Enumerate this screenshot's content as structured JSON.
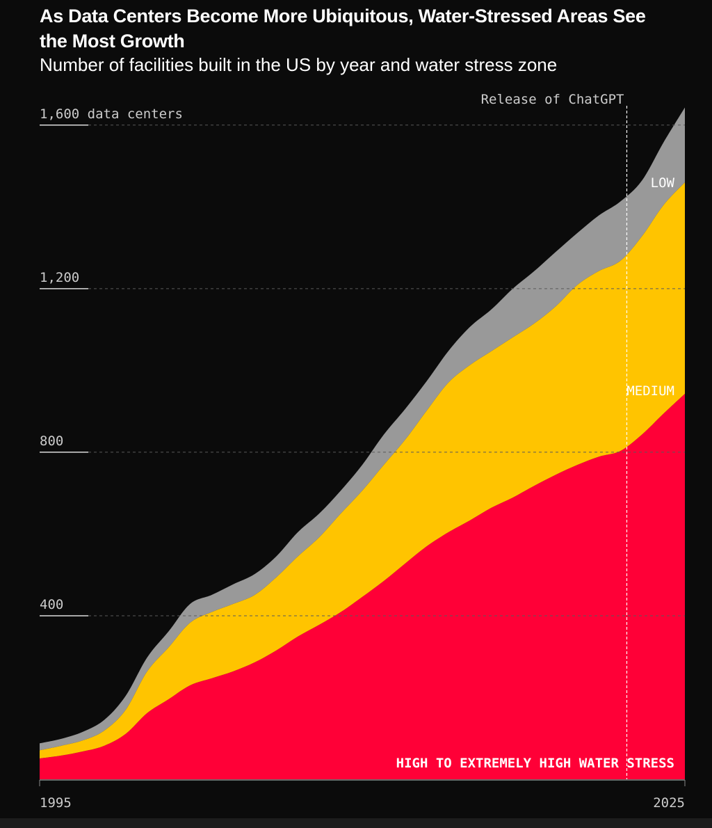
{
  "chart_data": {
    "type": "stacked_area",
    "title": "As Data Centers Become More Ubiquitous, Water-Stressed Areas See the Most Growth",
    "subtitle": "Number of facilities built in the US by year and water stress zone",
    "x": [
      1995,
      1996,
      1997,
      1998,
      1999,
      2000,
      2001,
      2002,
      2003,
      2004,
      2005,
      2006,
      2007,
      2008,
      2009,
      2010,
      2011,
      2012,
      2013,
      2014,
      2015,
      2016,
      2017,
      2018,
      2019,
      2020,
      2021,
      2022,
      2023,
      2024,
      2025
    ],
    "series": [
      {
        "name": "HIGH TO EXTREMELY HIGH WATER STRESS",
        "color": "#ff0037",
        "values": [
          51,
          58,
          68,
          82,
          111,
          162,
          196,
          230,
          247,
          264,
          286,
          315,
          349,
          378,
          409,
          446,
          485,
          528,
          570,
          604,
          633,
          664,
          689,
          718,
          745,
          769,
          789,
          803,
          843,
          894,
          943
        ]
      },
      {
        "name": "MEDIUM",
        "color": "#ffc400",
        "values": [
          20,
          24,
          27,
          37,
          59,
          102,
          127,
          153,
          162,
          165,
          165,
          179,
          196,
          214,
          241,
          260,
          284,
          303,
          332,
          366,
          380,
          383,
          392,
          397,
          412,
          440,
          454,
          465,
          485,
          510,
          517
        ]
      },
      {
        "name": "LOW",
        "color": "#999999",
        "values": [
          17,
          17,
          21,
          26,
          34,
          34,
          39,
          46,
          42,
          48,
          51,
          51,
          59,
          58,
          56,
          63,
          74,
          75,
          72,
          77,
          93,
          102,
          119,
          128,
          133,
          127,
          136,
          145,
          136,
          153,
          183
        ]
      }
    ],
    "xlim": [
      1995,
      2025
    ],
    "xticks": [
      1995,
      2025
    ],
    "ylim": [
      0,
      1700
    ],
    "yticks": [
      {
        "value": 400,
        "label": "400"
      },
      {
        "value": 800,
        "label": "800"
      },
      {
        "value": 1200,
        "label": "1,200"
      },
      {
        "value": 1600,
        "label": "1,600 data centers"
      }
    ],
    "grid": true,
    "annotation": {
      "text": "Release of ChatGPT",
      "x": 2022.3
    }
  }
}
